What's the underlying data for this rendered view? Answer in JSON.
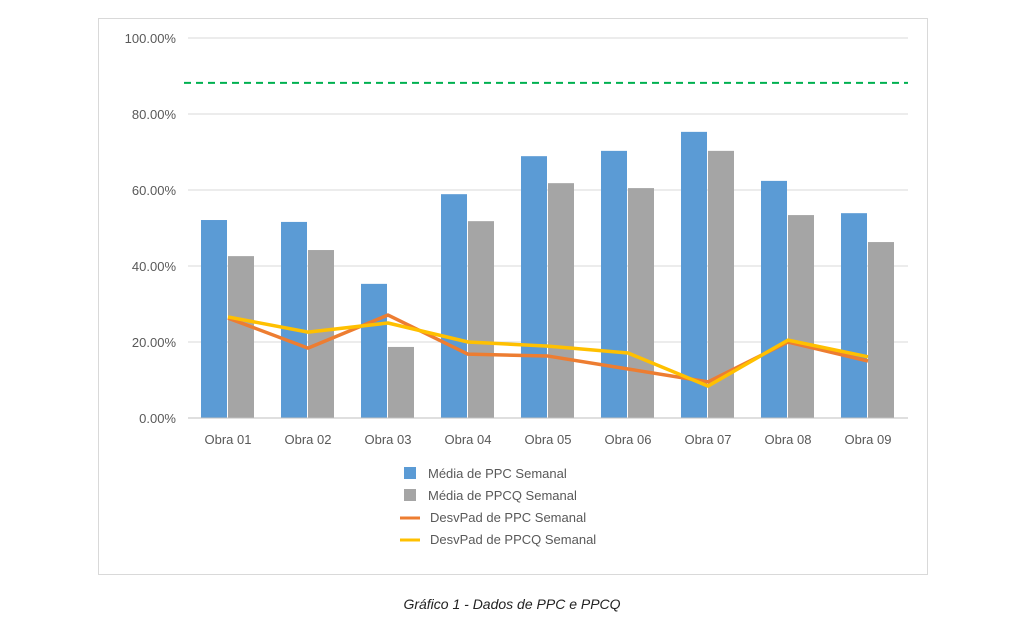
{
  "chart_data": {
    "type": "bar",
    "title": "",
    "caption": "Gráfico 1 - Dados de PPC e PPCQ",
    "categories": [
      "Obra 01",
      "Obra 02",
      "Obra 03",
      "Obra 04",
      "Obra 05",
      "Obra 06",
      "Obra 07",
      "Obra 08",
      "Obra 09"
    ],
    "ylim": [
      0,
      100
    ],
    "yticks": [
      "0.00%",
      "20.00%",
      "40.00%",
      "60.00%",
      "80.00%",
      "100.00%"
    ],
    "ytick_values": [
      0,
      20,
      40,
      60,
      80,
      100
    ],
    "grid": true,
    "legend_placement": "bottom",
    "series": [
      {
        "name": "Média de PPC Semanal",
        "kind": "bar",
        "color": "#5b9bd5",
        "values": [
          52.1,
          51.6,
          35.3,
          58.9,
          68.9,
          70.3,
          75.3,
          62.4,
          53.9
        ]
      },
      {
        "name": "Média de PPCQ Semanal",
        "kind": "bar",
        "color": "#a5a5a5",
        "values": [
          42.6,
          44.2,
          18.7,
          51.8,
          61.8,
          60.5,
          70.3,
          53.4,
          46.3
        ]
      },
      {
        "name": "DesvPad de PPC Semanal",
        "kind": "line",
        "color": "#ed7d31",
        "values": [
          26.3,
          18.4,
          27.1,
          16.8,
          16.3,
          12.9,
          9.5,
          20.0,
          15.0
        ]
      },
      {
        "name": "DesvPad de PPCQ Semanal",
        "kind": "line",
        "color": "#ffc000",
        "values": [
          26.6,
          22.6,
          25.0,
          20.0,
          18.9,
          17.1,
          8.4,
          20.5,
          16.1
        ]
      }
    ],
    "reference_line": {
      "value": 88.2,
      "color": "#00b050",
      "style": "dashed"
    }
  }
}
